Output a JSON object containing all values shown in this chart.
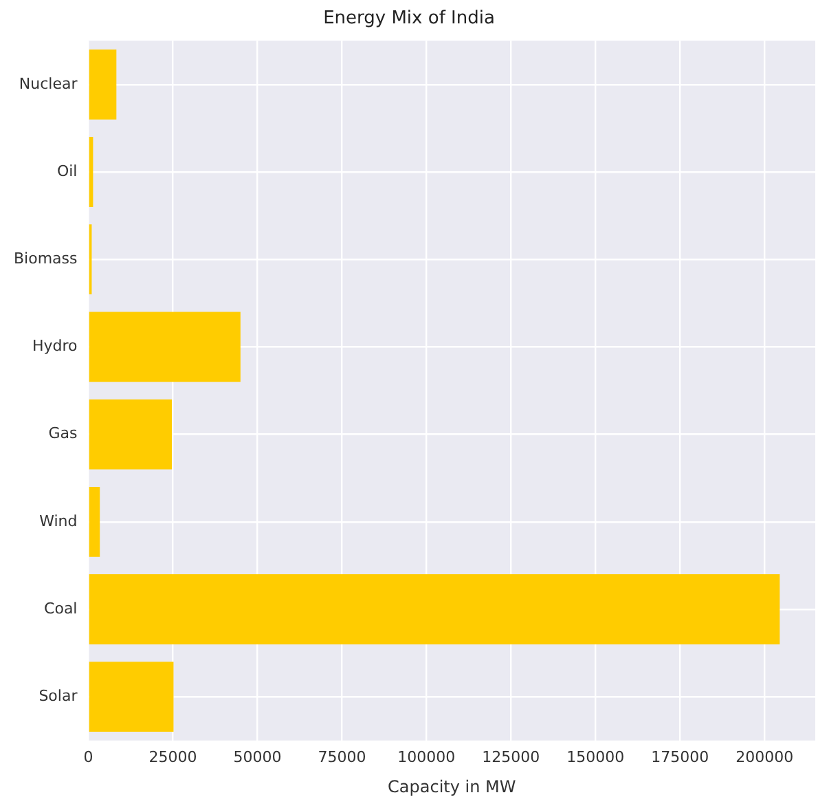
{
  "chart_data": {
    "type": "bar",
    "orientation": "horizontal",
    "title": "Energy Mix of India",
    "xlabel": "Capacity in MW",
    "categories": [
      "Nuclear",
      "Oil",
      "Biomass",
      "Hydro",
      "Gas",
      "Wind",
      "Coal",
      "Solar"
    ],
    "values": [
      8300,
      1400,
      1000,
      45000,
      24700,
      3400,
      204500,
      25200
    ],
    "color": "#ffcc00",
    "xlim": [
      0,
      215000
    ],
    "xticks": [
      0,
      25000,
      50000,
      75000,
      100000,
      125000,
      150000,
      175000,
      200000
    ],
    "grid": true
  }
}
